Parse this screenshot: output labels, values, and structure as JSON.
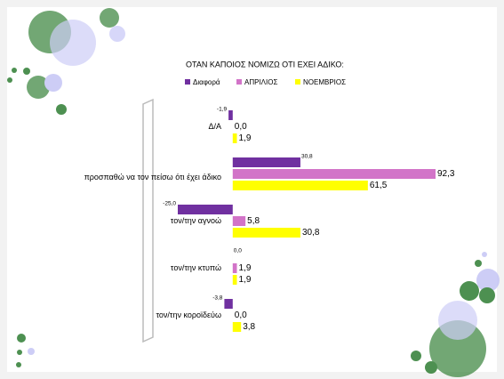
{
  "chart_data": {
    "type": "bar",
    "orientation": "horizontal",
    "title": "ΟΤΑΝ ΚΑΠΟΙΟΣ ΝΟΜΙΖΩ ΟΤΙ ΕΧΕΙ ΑΔΙΚΟ:",
    "categories": [
      "Δ/Α",
      "προσπαθώ να τον πείσω ότι έχει άδικο",
      "τον/την αγνοώ",
      "τον/την κτυπώ",
      "τον/την κοροϊδεύω"
    ],
    "series": [
      {
        "name": "Διαφορά",
        "color": "#7030a0",
        "values": [
          -1.9,
          30.8,
          -25.0,
          0.0,
          -3.8
        ],
        "value_labels": [
          "-1,9",
          "30,8",
          "-25,0",
          "0,0",
          "-3,8"
        ]
      },
      {
        "name": "ΑΠΡΙΛΙΟΣ",
        "color": "#d274c8",
        "values": [
          0.0,
          92.3,
          5.8,
          1.9,
          0.0
        ],
        "value_labels": [
          "0,0",
          "92,3",
          "5,8",
          "1,9",
          "0,0"
        ]
      },
      {
        "name": "ΝΟΕΜΒΡΙΟΣ",
        "color": "#ffff00",
        "values": [
          1.9,
          61.5,
          30.8,
          1.9,
          3.8
        ],
        "value_labels": [
          "1,9",
          "61,5",
          "30,8",
          "1,9",
          "3,8"
        ]
      }
    ]
  }
}
